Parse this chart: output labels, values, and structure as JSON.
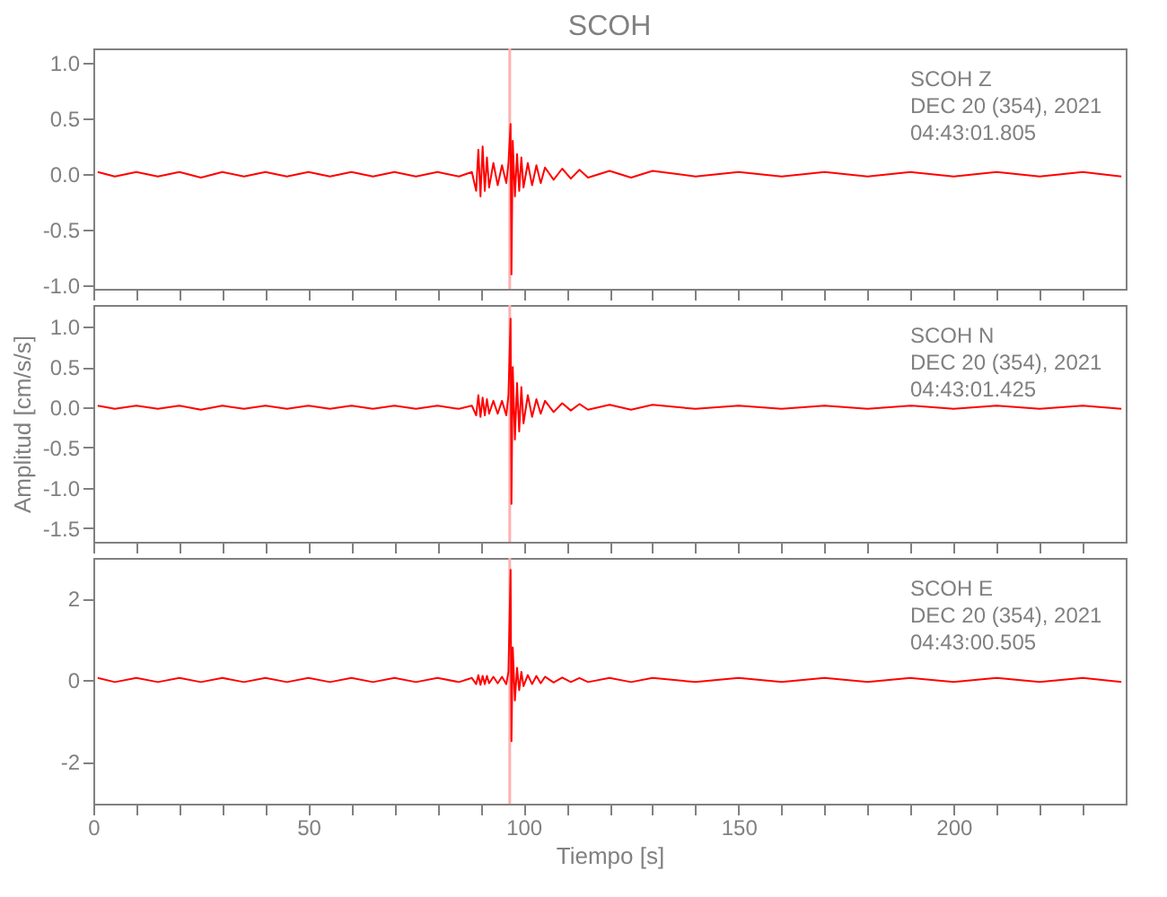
{
  "chart_data": [
    {
      "type": "line",
      "title": "SCOH",
      "annotations": [
        "SCOH   Z",
        "DEC 20 (354), 2021",
        "04:43:01.805"
      ],
      "x": [
        1,
        5,
        10,
        15,
        20,
        25,
        30,
        35,
        40,
        45,
        50,
        55,
        60,
        65,
        70,
        75,
        80,
        85,
        88,
        89,
        89.5,
        90,
        90.5,
        91,
        91.5,
        92,
        93,
        94,
        95,
        96,
        96.5,
        97,
        97.2,
        97.5,
        98,
        98.5,
        99,
        99.5,
        100,
        101,
        102,
        103,
        104,
        105,
        107,
        109,
        111,
        113,
        115,
        120,
        125,
        130,
        140,
        150,
        160,
        170,
        180,
        190,
        200,
        210,
        220,
        230,
        239
      ],
      "series": [
        {
          "color": "#ff0000",
          "values": [
            0.02,
            -0.02,
            0.02,
            -0.02,
            0.02,
            -0.03,
            0.02,
            -0.02,
            0.02,
            -0.02,
            0.02,
            -0.02,
            0.02,
            -0.02,
            0.02,
            -0.02,
            0.02,
            -0.02,
            0.02,
            -0.15,
            0.22,
            -0.2,
            0.25,
            -0.15,
            0.15,
            -0.12,
            0.1,
            -0.1,
            0.08,
            -0.08,
            0.1,
            0.45,
            -0.9,
            0.3,
            -0.2,
            0.18,
            -0.15,
            0.15,
            -0.12,
            0.1,
            -0.1,
            0.08,
            -0.08,
            0.06,
            -0.05,
            0.05,
            -0.04,
            0.04,
            -0.03,
            0.03,
            -0.03,
            0.03,
            -0.02,
            0.02,
            -0.02,
            0.02,
            -0.02,
            0.02,
            -0.02,
            0.02,
            -0.02,
            0.02,
            -0.02
          ]
        }
      ],
      "ref_lines": [
        {
          "axis": "x",
          "value": 96.8,
          "color": "#ffb0b0"
        }
      ],
      "xlim": [
        0,
        240
      ],
      "xticks": [
        0,
        {
          "value": 10,
          "label": null
        },
        {
          "value": 20,
          "label": null
        },
        {
          "value": 30,
          "label": null
        },
        {
          "value": 40,
          "label": null
        },
        50,
        {
          "value": 60,
          "label": null
        },
        {
          "value": 70,
          "label": null
        },
        {
          "value": 80,
          "label": null
        },
        {
          "value": 90,
          "label": null
        },
        100,
        {
          "value": 110,
          "label": null
        },
        {
          "value": 120,
          "label": null
        },
        {
          "value": 130,
          "label": null
        },
        {
          "value": 140,
          "label": null
        },
        150,
        {
          "value": 160,
          "label": null
        },
        {
          "value": 170,
          "label": null
        },
        {
          "value": 180,
          "label": null
        },
        {
          "value": 190,
          "label": null
        },
        200,
        {
          "value": 210,
          "label": null
        },
        {
          "value": 220,
          "label": null
        },
        {
          "value": 230,
          "label": null
        }
      ],
      "ylim": [
        -1.03,
        1.13
      ],
      "yticks": [
        {
          "value": -1,
          "label": "-1.0"
        },
        {
          "value": -0.5,
          "label": "-0.5"
        },
        {
          "value": 0,
          "label": "0.0"
        },
        {
          "value": 0.5,
          "label": "0.5"
        },
        {
          "value": 1,
          "label": "1.0"
        }
      ],
      "tick_labels": "y",
      "grid": false
    },
    {
      "type": "line",
      "ylabel": "Amplitud [cm/s/s]",
      "annotations": [
        "SCOH   N",
        "DEC 20 (354), 2021",
        "04:43:01.425"
      ],
      "x": [
        1,
        5,
        10,
        15,
        20,
        25,
        30,
        35,
        40,
        45,
        50,
        55,
        60,
        65,
        70,
        75,
        80,
        85,
        88,
        89,
        89.5,
        90,
        90.5,
        91,
        91.5,
        92,
        93,
        94,
        95,
        96,
        96.5,
        97,
        97.2,
        97.5,
        98,
        98.5,
        99,
        99.5,
        100,
        101,
        102,
        103,
        104,
        105,
        107,
        109,
        111,
        113,
        115,
        120,
        125,
        130,
        140,
        150,
        160,
        170,
        180,
        190,
        200,
        210,
        220,
        230,
        239
      ],
      "series": [
        {
          "color": "#ff0000",
          "values": [
            0.02,
            -0.02,
            0.02,
            -0.02,
            0.02,
            -0.03,
            0.02,
            -0.02,
            0.02,
            -0.02,
            0.02,
            -0.02,
            0.02,
            -0.02,
            0.02,
            -0.02,
            0.02,
            -0.02,
            0.02,
            -0.1,
            0.15,
            -0.12,
            0.12,
            -0.1,
            0.1,
            -0.08,
            0.08,
            -0.08,
            0.08,
            -0.1,
            0.15,
            1.1,
            -1.2,
            0.5,
            -0.4,
            0.3,
            -0.3,
            0.25,
            -0.2,
            0.15,
            -0.12,
            0.1,
            -0.08,
            0.08,
            -0.06,
            0.05,
            -0.04,
            0.04,
            -0.03,
            0.03,
            -0.03,
            0.03,
            -0.02,
            0.02,
            -0.02,
            0.02,
            -0.02,
            0.02,
            -0.02,
            0.02,
            -0.02,
            0.02,
            -0.02
          ]
        }
      ],
      "ref_lines": [
        {
          "axis": "x",
          "value": 96.8,
          "color": "#ffb0b0"
        }
      ],
      "xlim": [
        0,
        240
      ],
      "xticks": [
        0,
        {
          "value": 10,
          "label": null
        },
        {
          "value": 20,
          "label": null
        },
        {
          "value": 30,
          "label": null
        },
        {
          "value": 40,
          "label": null
        },
        50,
        {
          "value": 60,
          "label": null
        },
        {
          "value": 70,
          "label": null
        },
        {
          "value": 80,
          "label": null
        },
        {
          "value": 90,
          "label": null
        },
        100,
        {
          "value": 110,
          "label": null
        },
        {
          "value": 120,
          "label": null
        },
        {
          "value": 130,
          "label": null
        },
        {
          "value": 140,
          "label": null
        },
        150,
        {
          "value": 160,
          "label": null
        },
        {
          "value": 170,
          "label": null
        },
        {
          "value": 180,
          "label": null
        },
        {
          "value": 190,
          "label": null
        },
        200,
        {
          "value": 210,
          "label": null
        },
        {
          "value": 220,
          "label": null
        },
        {
          "value": 230,
          "label": null
        }
      ],
      "ylim": [
        -1.67,
        1.27
      ],
      "yticks": [
        {
          "value": -1.5,
          "label": "-1.5"
        },
        {
          "value": -1,
          "label": "-1.0"
        },
        {
          "value": -0.5,
          "label": "-0.5"
        },
        {
          "value": 0,
          "label": "0.0"
        },
        {
          "value": 0.5,
          "label": "0.5"
        },
        {
          "value": 1,
          "label": "1.0"
        }
      ],
      "tick_labels": "y",
      "grid": false
    },
    {
      "type": "line",
      "xlabel": "Tiempo [s]",
      "annotations": [
        "SCOH   E",
        "DEC 20 (354), 2021",
        "04:43:00.505"
      ],
      "x": [
        1,
        5,
        10,
        15,
        20,
        25,
        30,
        35,
        40,
        45,
        50,
        55,
        60,
        65,
        70,
        75,
        80,
        85,
        88,
        89,
        89.5,
        90,
        90.5,
        91,
        91.5,
        92,
        93,
        94,
        95,
        96,
        96.5,
        97,
        97.2,
        97.5,
        98,
        98.5,
        99,
        99.5,
        100,
        101,
        102,
        103,
        104,
        105,
        107,
        109,
        111,
        113,
        115,
        120,
        125,
        130,
        140,
        150,
        160,
        170,
        180,
        190,
        200,
        210,
        220,
        230,
        239
      ],
      "series": [
        {
          "color": "#ff0000",
          "values": [
            0.05,
            -0.05,
            0.05,
            -0.05,
            0.05,
            -0.05,
            0.05,
            -0.05,
            0.05,
            -0.05,
            0.05,
            -0.05,
            0.05,
            -0.05,
            0.05,
            -0.05,
            0.05,
            -0.05,
            0.05,
            -0.1,
            0.12,
            -0.12,
            0.1,
            -0.1,
            0.1,
            -0.08,
            0.08,
            -0.08,
            0.08,
            -0.1,
            0.2,
            2.7,
            -1.5,
            0.8,
            -0.5,
            0.3,
            -0.25,
            0.2,
            -0.15,
            0.12,
            -0.1,
            0.1,
            -0.08,
            0.08,
            -0.06,
            0.06,
            -0.05,
            0.05,
            -0.05,
            0.05,
            -0.05,
            0.05,
            -0.05,
            0.05,
            -0.05,
            0.05,
            -0.05,
            0.05,
            -0.05,
            0.05,
            -0.05,
            0.05,
            -0.05
          ]
        }
      ],
      "ref_lines": [
        {
          "axis": "x",
          "value": 96.8,
          "color": "#ffb0b0"
        }
      ],
      "xlim": [
        0,
        240
      ],
      "xticks": [
        0,
        {
          "value": 10,
          "label": null
        },
        {
          "value": 20,
          "label": null
        },
        {
          "value": 30,
          "label": null
        },
        {
          "value": 40,
          "label": null
        },
        50,
        {
          "value": 60,
          "label": null
        },
        {
          "value": 70,
          "label": null
        },
        {
          "value": 80,
          "label": null
        },
        {
          "value": 90,
          "label": null
        },
        100,
        {
          "value": 110,
          "label": null
        },
        {
          "value": 120,
          "label": null
        },
        {
          "value": 130,
          "label": null
        },
        {
          "value": 140,
          "label": null
        },
        150,
        {
          "value": 160,
          "label": null
        },
        {
          "value": 170,
          "label": null
        },
        {
          "value": 180,
          "label": null
        },
        {
          "value": 190,
          "label": null
        },
        200,
        {
          "value": 210,
          "label": null
        },
        {
          "value": 220,
          "label": null
        },
        {
          "value": 230,
          "label": null
        }
      ],
      "ylim": [
        -3.03,
        2.99
      ],
      "yticks": [
        -2,
        0,
        2
      ],
      "grid": false
    }
  ]
}
